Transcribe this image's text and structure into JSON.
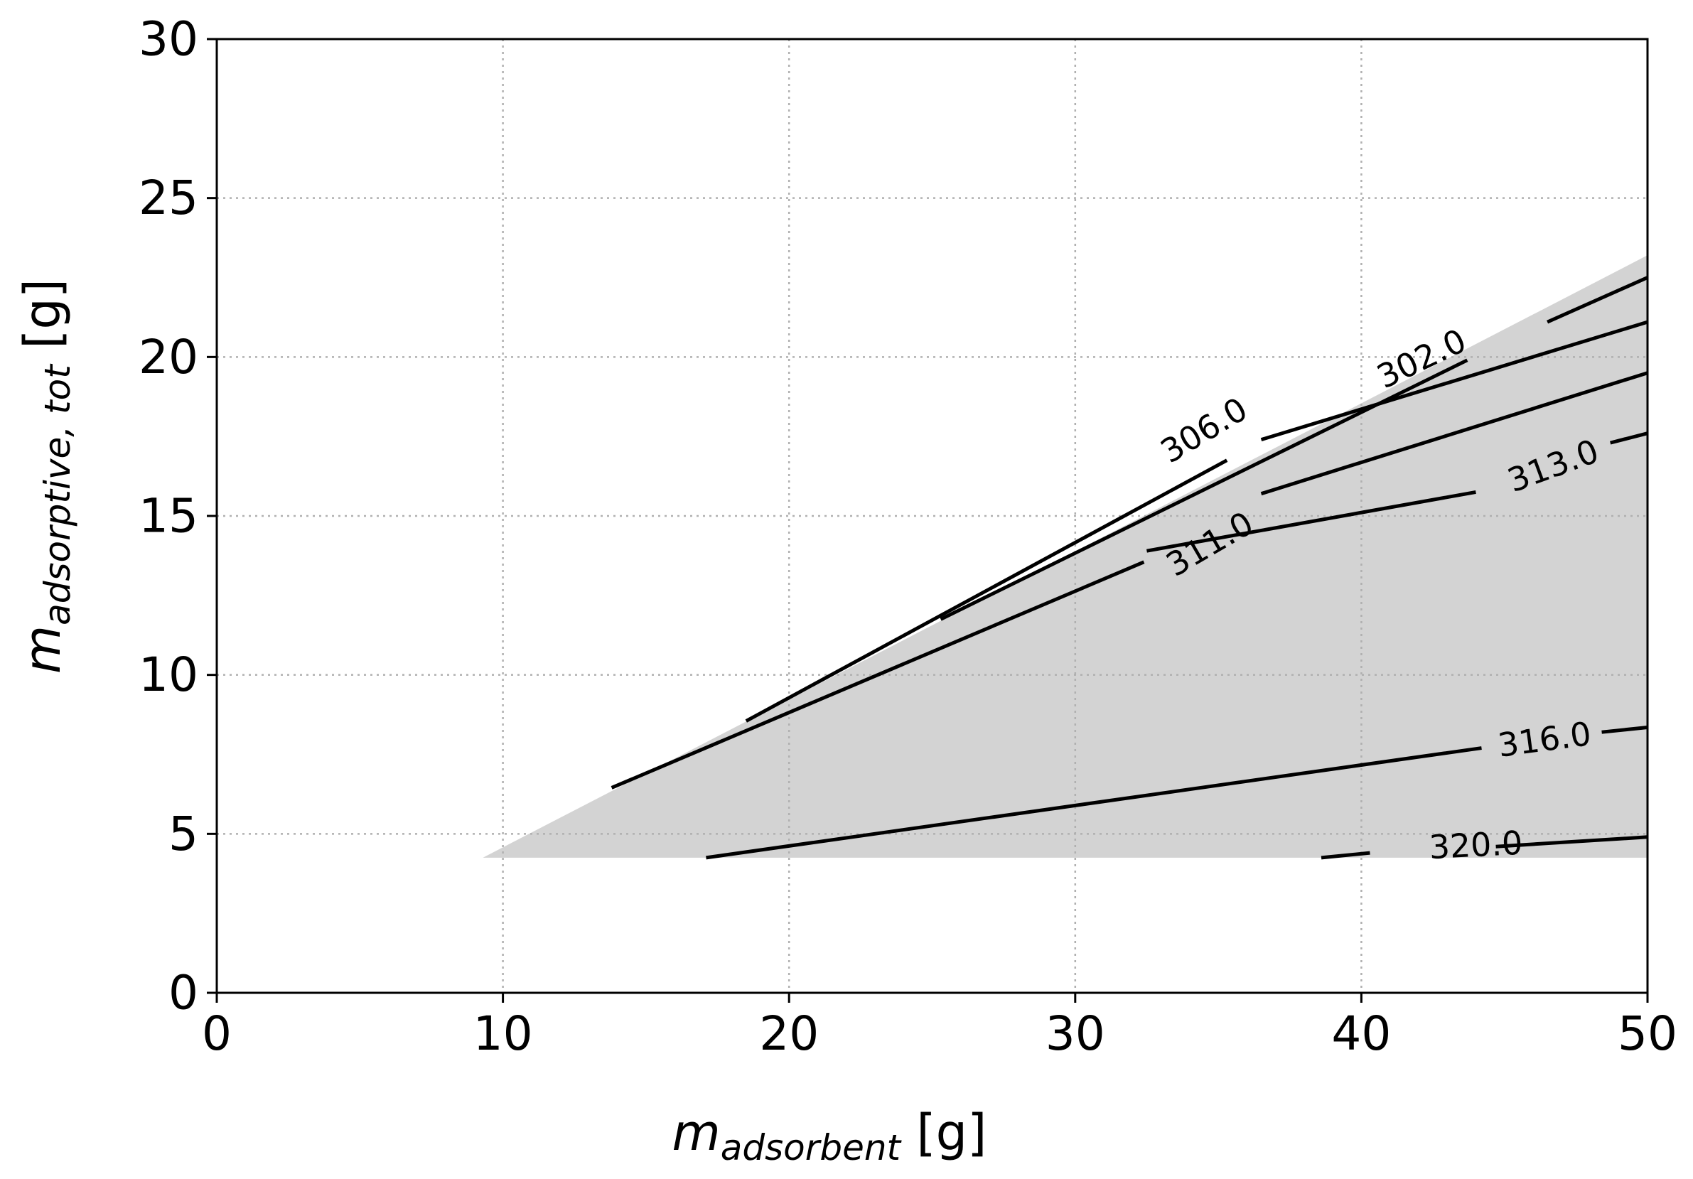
{
  "chart_data": {
    "type": "contour",
    "xlabel": {
      "symbol": "m",
      "subscript": "adsorbent",
      "unit": " [g]"
    },
    "ylabel": {
      "symbol": "m",
      "subscript": "adsorptive, tot",
      "unit": " [g]"
    },
    "xlim": [
      0,
      50
    ],
    "ylim": [
      0,
      30
    ],
    "xticks": [
      0,
      10,
      20,
      30,
      40,
      50
    ],
    "yticks": [
      0,
      5,
      10,
      15,
      20,
      25,
      30
    ],
    "grid": true,
    "region_color": "#d3d3d3",
    "line_color": "#000000",
    "feasible_region": [
      [
        9.3,
        4.25
      ],
      [
        50,
        4.25
      ],
      [
        50,
        23.2
      ]
    ],
    "contours": [
      {
        "level": "302.0",
        "label_at": [
          42.1,
          19.95
        ],
        "segments": [
          [
            [
              25.3,
              11.75
            ],
            [
              43.7,
              19.9
            ]
          ],
          [
            [
              46.5,
              21.1
            ],
            [
              50,
              22.5
            ]
          ]
        ]
      },
      {
        "level": "306.0",
        "label_at": [
          34.5,
          17.7
        ],
        "segments": [
          [
            [
              18.5,
              8.55
            ],
            [
              35.3,
              16.75
            ]
          ],
          [
            [
              36.5,
              17.4
            ],
            [
              50,
              21.1
            ]
          ]
        ]
      },
      {
        "level": "311.0",
        "label_at": [
          34.7,
          14.12
        ],
        "segments": [
          [
            [
              13.8,
              6.45
            ],
            [
              32.4,
              13.55
            ]
          ],
          [
            [
              36.5,
              15.7
            ],
            [
              50,
              19.5
            ]
          ]
        ]
      },
      {
        "level": "313.0",
        "label_at": [
          46.7,
          16.58
        ],
        "segments": [
          [
            [
              32.5,
              13.9
            ],
            [
              44.0,
              15.75
            ]
          ],
          [
            [
              48.7,
              17.3
            ],
            [
              50,
              17.6
            ]
          ]
        ]
      },
      {
        "level": "316.0",
        "label_at": [
          46.4,
          7.97
        ],
        "segments": [
          [
            [
              17.1,
              4.25
            ],
            [
              44.2,
              7.7
            ]
          ],
          [
            [
              48.4,
              8.2
            ],
            [
              50,
              8.35
            ]
          ]
        ]
      },
      {
        "level": "320.0",
        "label_at": [
          44.0,
          4.65
        ],
        "segments": [
          [
            [
              38.6,
              4.25
            ],
            [
              40.3,
              4.4
            ]
          ],
          [
            [
              44.7,
              4.6
            ],
            [
              50,
              4.9
            ]
          ]
        ]
      }
    ]
  }
}
